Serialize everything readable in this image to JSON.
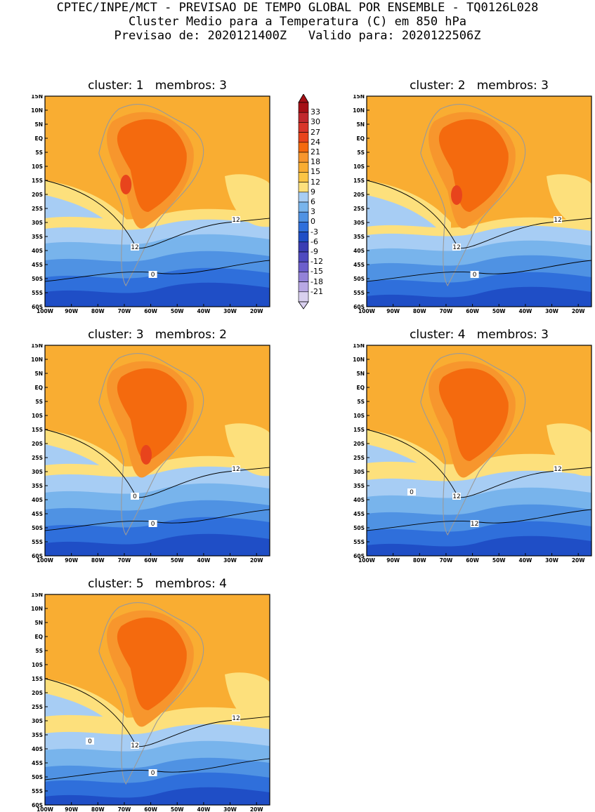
{
  "header": {
    "line1": "CPTEC/INPE/MCT - PREVISAO DE TEMPO GLOBAL POR ENSEMBLE - TQ0126L028",
    "line2": "Cluster Medio para a Temperatura (C) em 850 hPa",
    "line3": "Previsao de: 2020121400Z   Valido para: 2020122506Z"
  },
  "axes": {
    "lat_labels": [
      "15N",
      "10N",
      "5N",
      "EQ",
      "5S",
      "10S",
      "15S",
      "20S",
      "25S",
      "30S",
      "35S",
      "40S",
      "45S",
      "50S",
      "55S",
      "60S"
    ],
    "lon_labels": [
      "100W",
      "90W",
      "80W",
      "70W",
      "60W",
      "50W",
      "40W",
      "30W",
      "20W"
    ]
  },
  "colorbar": {
    "labels": [
      "33",
      "30",
      "27",
      "24",
      "21",
      "18",
      "15",
      "12",
      "9",
      "6",
      "3",
      "0",
      "-3",
      "-6",
      "-9",
      "-12",
      "-15",
      "-18",
      "-21"
    ],
    "colors": [
      "#a50f15",
      "#c0282d",
      "#d8352a",
      "#e8441c",
      "#f46a0e",
      "#f7962d",
      "#f9ad32",
      "#fbc545",
      "#fde07c",
      "#a7cdf4",
      "#78b4ec",
      "#4f92e3",
      "#2f6fdb",
      "#1f4ec6",
      "#3a3db3",
      "#4f4ac0",
      "#6c5fcc",
      "#9382d8",
      "#b8a8e4",
      "#d9d0ef"
    ]
  },
  "panels": [
    {
      "title": "cluster: 1   membros: 3",
      "contour_labels": [
        "12",
        "12",
        "0"
      ]
    },
    {
      "title": "cluster: 2   membros: 3",
      "contour_labels": [
        "12",
        "12",
        "0"
      ]
    },
    {
      "title": "cluster: 3   membros: 2",
      "contour_labels": [
        "12",
        "0",
        "0"
      ]
    },
    {
      "title": "cluster: 4   membros: 3",
      "contour_labels": [
        "12",
        "12",
        "12",
        "0"
      ]
    },
    {
      "title": "cluster: 5   membros: 4",
      "contour_labels": [
        "12",
        "12",
        "0",
        "0"
      ]
    }
  ]
}
